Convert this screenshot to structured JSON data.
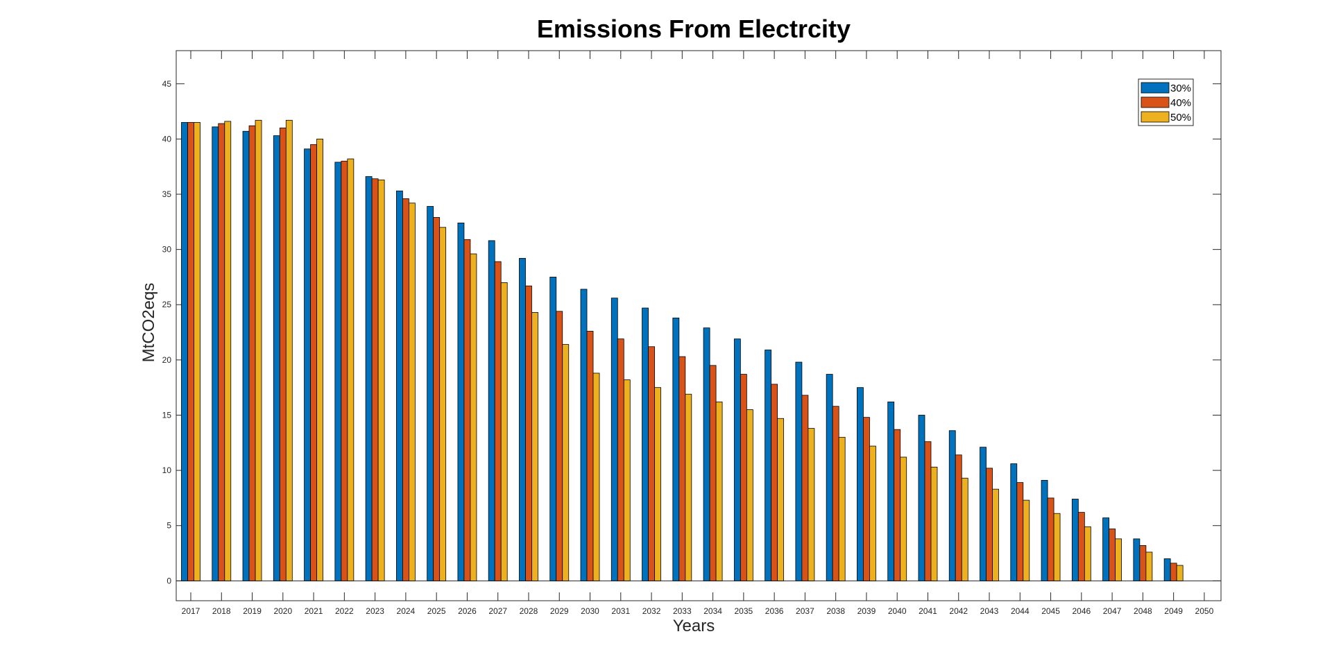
{
  "chart_data": {
    "type": "bar",
    "title": "Emissions From Electrcity",
    "xlabel": "Years",
    "ylabel": "MtCO2eqs",
    "categories": [
      "2017",
      "2018",
      "2019",
      "2020",
      "2021",
      "2022",
      "2023",
      "2024",
      "2025",
      "2026",
      "2027",
      "2028",
      "2029",
      "2030",
      "2031",
      "2032",
      "2033",
      "2034",
      "2035",
      "2036",
      "2037",
      "2038",
      "2039",
      "2040",
      "2041",
      "2042",
      "2043",
      "2044",
      "2045",
      "2046",
      "2047",
      "2048",
      "2049",
      "2050"
    ],
    "yticks": [
      "0",
      "5",
      "10",
      "15",
      "20",
      "25",
      "30",
      "35",
      "40",
      "45"
    ],
    "ylim": [
      -1.8,
      48
    ],
    "grid": false,
    "legend_position": "top-right",
    "series": [
      {
        "name": "30%",
        "color": "#0072BD",
        "values": [
          41.5,
          41.1,
          40.7,
          40.3,
          39.1,
          37.9,
          36.6,
          35.3,
          33.9,
          32.4,
          30.8,
          29.2,
          27.5,
          26.4,
          25.6,
          24.7,
          23.8,
          22.9,
          21.9,
          20.9,
          19.8,
          18.7,
          17.5,
          16.2,
          15.0,
          13.6,
          12.1,
          10.6,
          9.1,
          7.4,
          5.7,
          3.8,
          2.0,
          0
        ]
      },
      {
        "name": "40%",
        "color": "#D95319",
        "values": [
          41.5,
          41.4,
          41.2,
          41.0,
          39.5,
          38.0,
          36.4,
          34.6,
          32.9,
          30.9,
          28.9,
          26.7,
          24.4,
          22.6,
          21.9,
          21.2,
          20.3,
          19.5,
          18.7,
          17.8,
          16.8,
          15.8,
          14.8,
          13.7,
          12.6,
          11.4,
          10.2,
          8.9,
          7.5,
          6.2,
          4.7,
          3.2,
          1.6,
          0
        ]
      },
      {
        "name": "50%",
        "color": "#EDB120",
        "values": [
          41.5,
          41.6,
          41.7,
          41.7,
          40.0,
          38.2,
          36.3,
          34.2,
          32.0,
          29.6,
          27.0,
          24.3,
          21.4,
          18.8,
          18.2,
          17.5,
          16.9,
          16.2,
          15.5,
          14.7,
          13.8,
          13.0,
          12.2,
          11.2,
          10.3,
          9.3,
          8.3,
          7.3,
          6.1,
          4.9,
          3.8,
          2.6,
          1.4,
          0
        ]
      }
    ]
  }
}
